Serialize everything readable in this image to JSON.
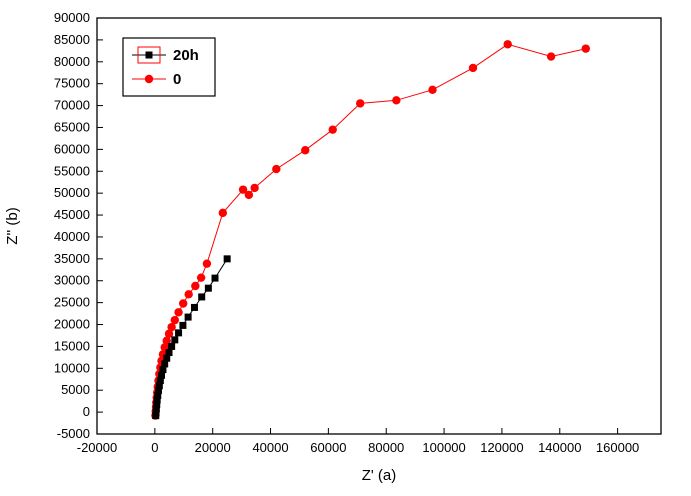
{
  "colors": {
    "background": "#ffffff",
    "frame": "#000000",
    "series_20h": "#000000",
    "series_0": "#ff0000"
  },
  "chart_data": {
    "type": "scatter",
    "title": "",
    "xlabel": "Z' (a)",
    "ylabel": "Z'' (b)",
    "xlim": [
      -20000,
      175000
    ],
    "ylim": [
      -5000,
      90000
    ],
    "xticks": [
      -20000,
      0,
      20000,
      40000,
      60000,
      80000,
      100000,
      120000,
      140000,
      160000
    ],
    "yticks": [
      -5000,
      0,
      5000,
      10000,
      15000,
      20000,
      25000,
      30000,
      35000,
      40000,
      45000,
      50000,
      55000,
      60000,
      65000,
      70000,
      75000,
      80000,
      85000,
      90000
    ],
    "grid": false,
    "legend_position": "top-left",
    "series": [
      {
        "name": "20h",
        "color": "#000000",
        "marker": "square",
        "line": true,
        "points": [
          [
            300,
            -800
          ],
          [
            400,
            0
          ],
          [
            500,
            900
          ],
          [
            650,
            1800
          ],
          [
            800,
            2800
          ],
          [
            1000,
            3800
          ],
          [
            1250,
            4900
          ],
          [
            1550,
            6000
          ],
          [
            1900,
            7200
          ],
          [
            2300,
            8400
          ],
          [
            2800,
            9700
          ],
          [
            3400,
            11000
          ],
          [
            4100,
            12300
          ],
          [
            4900,
            13600
          ],
          [
            5800,
            15000
          ],
          [
            6900,
            16500
          ],
          [
            8200,
            18100
          ],
          [
            9700,
            19800
          ],
          [
            11500,
            21700
          ],
          [
            13700,
            23900
          ],
          [
            16200,
            26300
          ],
          [
            18500,
            28300
          ],
          [
            20800,
            30600
          ],
          [
            25000,
            35000
          ]
        ]
      },
      {
        "name": "0",
        "color": "#ff0000",
        "marker": "circle",
        "line": true,
        "points": [
          [
            200,
            -800
          ],
          [
            300,
            200
          ],
          [
            400,
            1200
          ],
          [
            500,
            2200
          ],
          [
            650,
            3300
          ],
          [
            800,
            4500
          ],
          [
            1000,
            5800
          ],
          [
            1250,
            7200
          ],
          [
            1550,
            8700
          ],
          [
            1900,
            10200
          ],
          [
            2300,
            11700
          ],
          [
            2800,
            13200
          ],
          [
            3400,
            14800
          ],
          [
            4100,
            16300
          ],
          [
            4900,
            17900
          ],
          [
            5800,
            19400
          ],
          [
            6900,
            21000
          ],
          [
            8200,
            22800
          ],
          [
            9800,
            24800
          ],
          [
            11700,
            26900
          ],
          [
            14000,
            28800
          ],
          [
            16000,
            30700
          ],
          [
            18000,
            33900
          ],
          [
            23500,
            45500
          ],
          [
            30500,
            50800
          ],
          [
            32500,
            49600
          ],
          [
            34500,
            51200
          ],
          [
            42000,
            55500
          ],
          [
            52000,
            59800
          ],
          [
            61500,
            64500
          ],
          [
            71000,
            70500
          ],
          [
            83500,
            71200
          ],
          [
            96000,
            73600
          ],
          [
            110000,
            78600
          ],
          [
            122000,
            84000
          ],
          [
            137000,
            81200
          ],
          [
            149000,
            83000
          ]
        ]
      }
    ]
  }
}
